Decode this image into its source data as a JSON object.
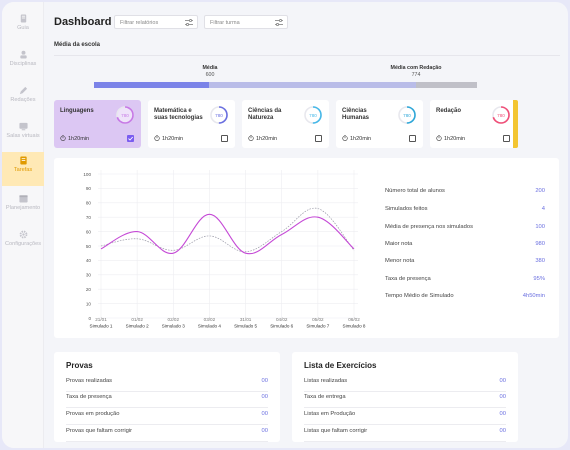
{
  "sidebar": {
    "items": [
      {
        "label": "Guia",
        "icon": "guide-icon"
      },
      {
        "label": "Disciplinas",
        "icon": "disciplines-icon"
      },
      {
        "label": "Redações",
        "icon": "pencil-icon"
      },
      {
        "label": "Salas virtuais",
        "icon": "virtual-room-icon"
      },
      {
        "label": "Tarefas",
        "icon": "tasks-icon"
      },
      {
        "label": "Planejamento",
        "icon": "planning-icon"
      },
      {
        "label": "Configurações",
        "icon": "gear-icon"
      }
    ],
    "active": "Tarefas"
  },
  "header": {
    "title": "Dashboard",
    "filter_reports_placeholder": "Filtrar relatórios",
    "filter_class_placeholder": "Filtrar turma"
  },
  "school_average": {
    "title": "Média da escola",
    "media_label": "Média",
    "media_value": "600",
    "media_redacao_label": "Média com Redação",
    "media_redacao_value": "774",
    "media_fraction": 0.3,
    "media_redacao_fraction": 0.84
  },
  "subjects": [
    {
      "name": "Linguagens",
      "score": "780",
      "time": "1h20min",
      "color": "#c778e6",
      "checked": true,
      "fraction": 0.7
    },
    {
      "name": "Matemática e suas tecnologias",
      "score": "780",
      "time": "1h20min",
      "color": "#6a6fe0",
      "checked": false,
      "fraction": 0.5
    },
    {
      "name": "Ciências da Natureza",
      "score": "780",
      "time": "1h20min",
      "color": "#46b8e8",
      "checked": false,
      "fraction": 0.5
    },
    {
      "name": "Ciências Humanas",
      "score": "780",
      "time": "1h20min",
      "color": "#2ea7d8",
      "checked": false,
      "fraction": 0.5
    },
    {
      "name": "Redação",
      "score": "780",
      "time": "1h20min",
      "color": "#f04f78",
      "checked": false,
      "fraction": 0.7
    }
  ],
  "chart_data": {
    "type": "line",
    "title": "",
    "ylim": [
      0,
      100
    ],
    "yticks": [
      "100",
      "90",
      "80",
      "70",
      "60",
      "50",
      "40",
      "30",
      "20",
      "10",
      "0"
    ],
    "dates": [
      "21/01",
      "01/02",
      "02/02",
      "03/02",
      "31/01",
      "04/02",
      "05/02",
      "06/02"
    ],
    "categories": [
      "Simulado 1",
      "Simulado 2",
      "Simulado 3",
      "Simulado 4",
      "Simulado 5",
      "Simulado 6",
      "Simulado 7",
      "Simulado 8"
    ],
    "series": [
      {
        "values": [
          48,
          60,
          45,
          72,
          45,
          58,
          70,
          48
        ],
        "color": "#c54ad6",
        "style": "solid"
      },
      {
        "values": [
          50,
          55,
          47,
          57,
          46,
          60,
          76,
          47
        ],
        "color": "#9a9aa8",
        "style": "dashed"
      }
    ]
  },
  "stats": [
    {
      "label": "Número total de alunos",
      "value": "200"
    },
    {
      "label": "Simulados feitos",
      "value": "4"
    },
    {
      "label": "Média de presença nos simulados",
      "value": "100"
    },
    {
      "label": "Maior nota",
      "value": "980"
    },
    {
      "label": "Menor nota",
      "value": "380"
    },
    {
      "label": "Taxa de presença",
      "value": "95%"
    },
    {
      "label": "Tempo Médio de Simulado",
      "value": "4h50min"
    }
  ],
  "provas": {
    "title": "Provas",
    "rows": [
      {
        "label": "Provas realizadas",
        "value": "00"
      },
      {
        "label": "Taxa de presença",
        "value": "00"
      },
      {
        "label": "Provas em produção",
        "value": "00"
      },
      {
        "label": "Provas que faltam corrigir",
        "value": "00"
      }
    ]
  },
  "exercicios": {
    "title": "Lista de Exercícios",
    "rows": [
      {
        "label": "Listas realizadas",
        "value": "00"
      },
      {
        "label": "Taxa de entrega",
        "value": "00"
      },
      {
        "label": "Listas em Produção",
        "value": "00"
      },
      {
        "label": "Listas que faltam corrigir",
        "value": "00"
      }
    ]
  }
}
